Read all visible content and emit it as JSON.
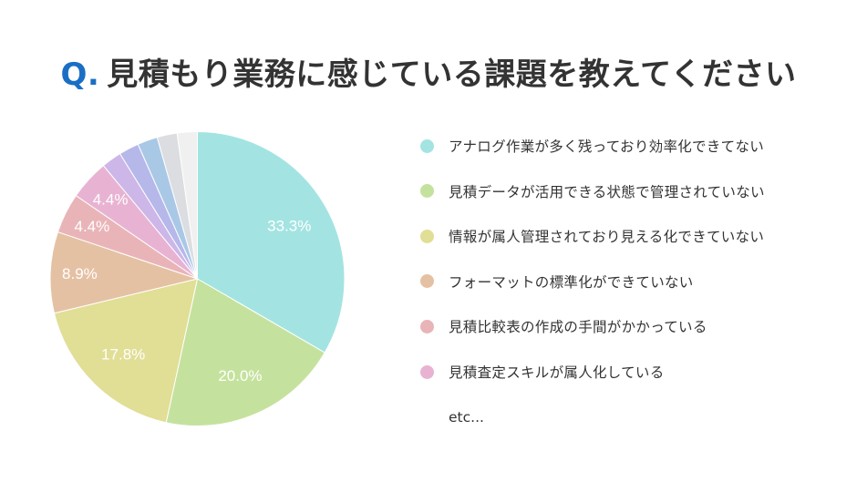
{
  "title": {
    "prefix": "Q.",
    "text": "見積もり業務に感じている課題を教えてください",
    "prefix_color": "#1a6fc4",
    "text_color": "#333333"
  },
  "legend": {
    "items": [
      {
        "label": "アナログ作業が多く残っており効率化できてない",
        "color": "#a3e4e2"
      },
      {
        "label": "見積データが活用できる状態で管理されていない",
        "color": "#c4e29d"
      },
      {
        "label": "情報が属人管理されており見える化できていない",
        "color": "#e1de96"
      },
      {
        "label": "フォーマットの標準化ができていない",
        "color": "#e5c1a4"
      },
      {
        "label": "見積比較表の作成の手間がかかっている",
        "color": "#e9b4b8"
      },
      {
        "label": "見積査定スキルが属人化している",
        "color": "#e8b3d3"
      }
    ],
    "etc": "etc..."
  },
  "chart_data": {
    "type": "pie",
    "title": "Q. 見積もり業務に感じている課題を教えてください",
    "start_angle": "12 o'clock",
    "direction": "clockwise",
    "legend_position": "right",
    "categories": [
      "アナログ作業が多く残っており効率化できてない",
      "見積データが活用できる状態で管理されていない",
      "情報が属人管理されており見える化できていない",
      "フォーマットの標準化ができていない",
      "見積比較表の作成の手間がかかっている",
      "見積査定スキルが属人化している",
      "その他1",
      "その他2",
      "その他3",
      "その他4",
      "その他5"
    ],
    "values": [
      33.3,
      20.0,
      17.8,
      8.9,
      4.4,
      4.4,
      2.2,
      2.2,
      2.2,
      2.2,
      2.2
    ],
    "labels": [
      "33.3%",
      "20.0%",
      "17.8%",
      "8.9%",
      "4.4%",
      "4.4%",
      "",
      "",
      "",
      "",
      ""
    ],
    "colors": [
      "#a3e4e2",
      "#c4e29d",
      "#e1de96",
      "#e5c1a4",
      "#e9b4b8",
      "#e8b3d3",
      "#cdb6e8",
      "#b6b8ea",
      "#a9c8e6",
      "#dcdde0",
      "#f0f0f1"
    ],
    "unit": "%"
  }
}
